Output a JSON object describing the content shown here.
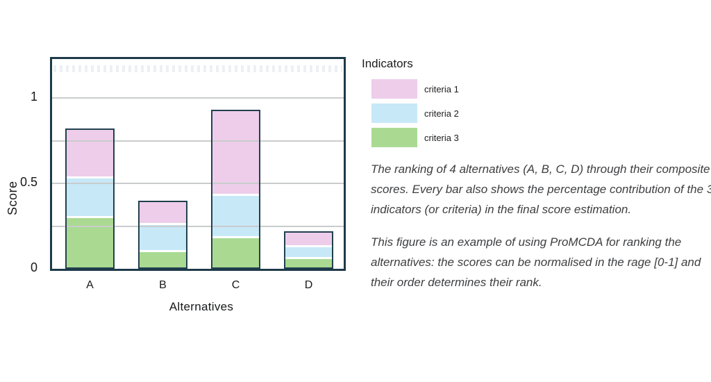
{
  "chart_data": {
    "type": "bar",
    "stacked": true,
    "categories": [
      "A",
      "B",
      "C",
      "D"
    ],
    "series": [
      {
        "name": "criteria 1",
        "color": "#edcdea",
        "values": [
          0.28,
          0.13,
          0.49,
          0.08
        ]
      },
      {
        "name": "criteria 2",
        "color": "#c7e8f7",
        "values": [
          0.23,
          0.16,
          0.25,
          0.07
        ]
      },
      {
        "name": "criteria 3",
        "color": "#aada92",
        "values": [
          0.31,
          0.11,
          0.19,
          0.07
        ]
      }
    ],
    "totals": [
      0.82,
      0.4,
      0.93,
      0.22
    ],
    "xlabel": "Alternatives",
    "ylabel": "Score",
    "yticks": [
      {
        "value": 0,
        "label": "0"
      },
      {
        "value": 0.5,
        "label": "0.5"
      },
      {
        "value": 1,
        "label": "1"
      }
    ],
    "gridline_values": [
      0.25,
      0.5,
      0.75,
      1.0
    ],
    "ylim": [
      0,
      1.25
    ],
    "grid": true,
    "grid_color": "#c9cccd",
    "frame_color": "#1e3a4a",
    "bar_outline_color": "#21404f",
    "segment_separator_color": "#ffffff",
    "legend_position": "right"
  },
  "legend": {
    "title": "Indicators",
    "items": [
      {
        "label": "criteria 1",
        "color": "#edcdea"
      },
      {
        "label": "criteria 2",
        "color": "#c7e8f7"
      },
      {
        "label": "criteria 3",
        "color": "#aada92"
      }
    ]
  },
  "caption": {
    "para1_lines": [
      "The ranking of 4 alternatives (A, B, C, D) through their composite",
      "scores. Every bar also shows the percentage contribution of the 3",
      "indicators (or criteria) in the final score estimation."
    ],
    "para2_lines": [
      "This figure is an example of using ProMCDA for ranking the",
      "alternatives: the scores can be normalised in the rage [0-1] and",
      "their order determines their rank."
    ]
  }
}
